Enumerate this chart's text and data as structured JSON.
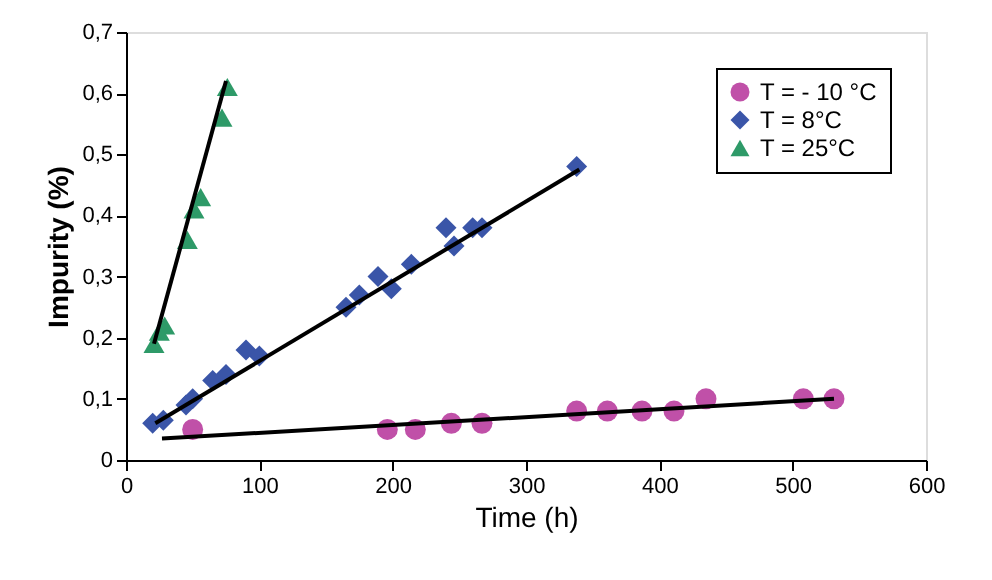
{
  "chart_data": {
    "type": "scatter",
    "xlabel": "Time (h)",
    "ylabel": "Impurity (%)",
    "xlim": [
      0,
      600
    ],
    "xticks": [
      0,
      100,
      200,
      300,
      400,
      500,
      600
    ],
    "ylim": [
      0,
      0.7
    ],
    "yticks": [
      0,
      {
        "value": 0.1,
        "label": "0,1"
      },
      {
        "value": 0.2,
        "label": "0,2"
      },
      {
        "value": 0.3,
        "label": "0,3"
      },
      {
        "value": 0.4,
        "label": "0,4"
      },
      {
        "value": 0.5,
        "label": "0,5"
      },
      {
        "value": 0.6,
        "label": "0,6"
      },
      {
        "value": 0.7,
        "label": "0,7"
      }
    ],
    "grid": false,
    "legend": "top right",
    "series": [
      {
        "name": "T = - 10 °C",
        "marker": "circle",
        "color": "#c050a8",
        "x": [
          50,
          196,
          217,
          244,
          267,
          338,
          361,
          387,
          411,
          435,
          508,
          531
        ],
        "values": [
          0.05,
          0.05,
          0.05,
          0.06,
          0.06,
          0.08,
          0.08,
          0.08,
          0.08,
          0.1,
          0.1,
          0.1
        ]
      },
      {
        "name": "T = 8°C",
        "marker": "diamond",
        "color": "#3a55a8",
        "x": [
          20,
          28,
          45,
          50,
          65,
          75,
          90,
          100,
          165,
          175,
          189,
          199,
          214,
          240,
          246,
          260,
          267,
          338
        ],
        "values": [
          0.06,
          0.065,
          0.09,
          0.1,
          0.13,
          0.14,
          0.18,
          0.17,
          0.25,
          0.27,
          0.3,
          0.28,
          0.32,
          0.38,
          0.35,
          0.38,
          0.38,
          0.48
        ]
      },
      {
        "name": "T = 25°C",
        "marker": "triangle",
        "color": "#2e9a68",
        "x": [
          21,
          25,
          29,
          46,
          51,
          56,
          72,
          76
        ],
        "values": [
          0.19,
          0.21,
          0.22,
          0.36,
          0.41,
          0.43,
          0.56,
          0.61
        ]
      },
      {
        "type": "line",
        "color": "#000000",
        "x": [
          27,
          531
        ],
        "values": [
          0.035,
          0.1
        ]
      },
      {
        "type": "line",
        "color": "#000000",
        "x": [
          22,
          340
        ],
        "values": [
          0.06,
          0.475
        ]
      },
      {
        "type": "line",
        "color": "#000000",
        "x": [
          21,
          75
        ],
        "values": [
          0.19,
          0.62
        ]
      }
    ]
  }
}
